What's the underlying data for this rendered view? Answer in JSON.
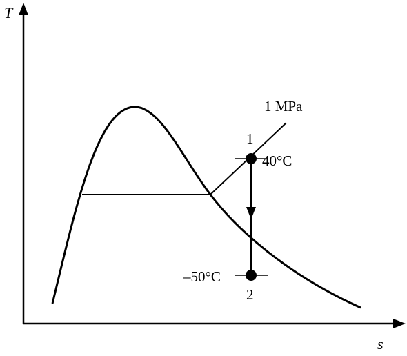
{
  "axes": {
    "y_label": "T",
    "x_label": "s"
  },
  "isobar": {
    "label": "1 MPa"
  },
  "states": [
    {
      "id": "1",
      "label": "1",
      "temperature_label": "40°C"
    },
    {
      "id": "2",
      "label": "2",
      "temperature_label": "–50°C"
    }
  ],
  "colors": {
    "ink": "#000000",
    "background": "#ffffff"
  }
}
